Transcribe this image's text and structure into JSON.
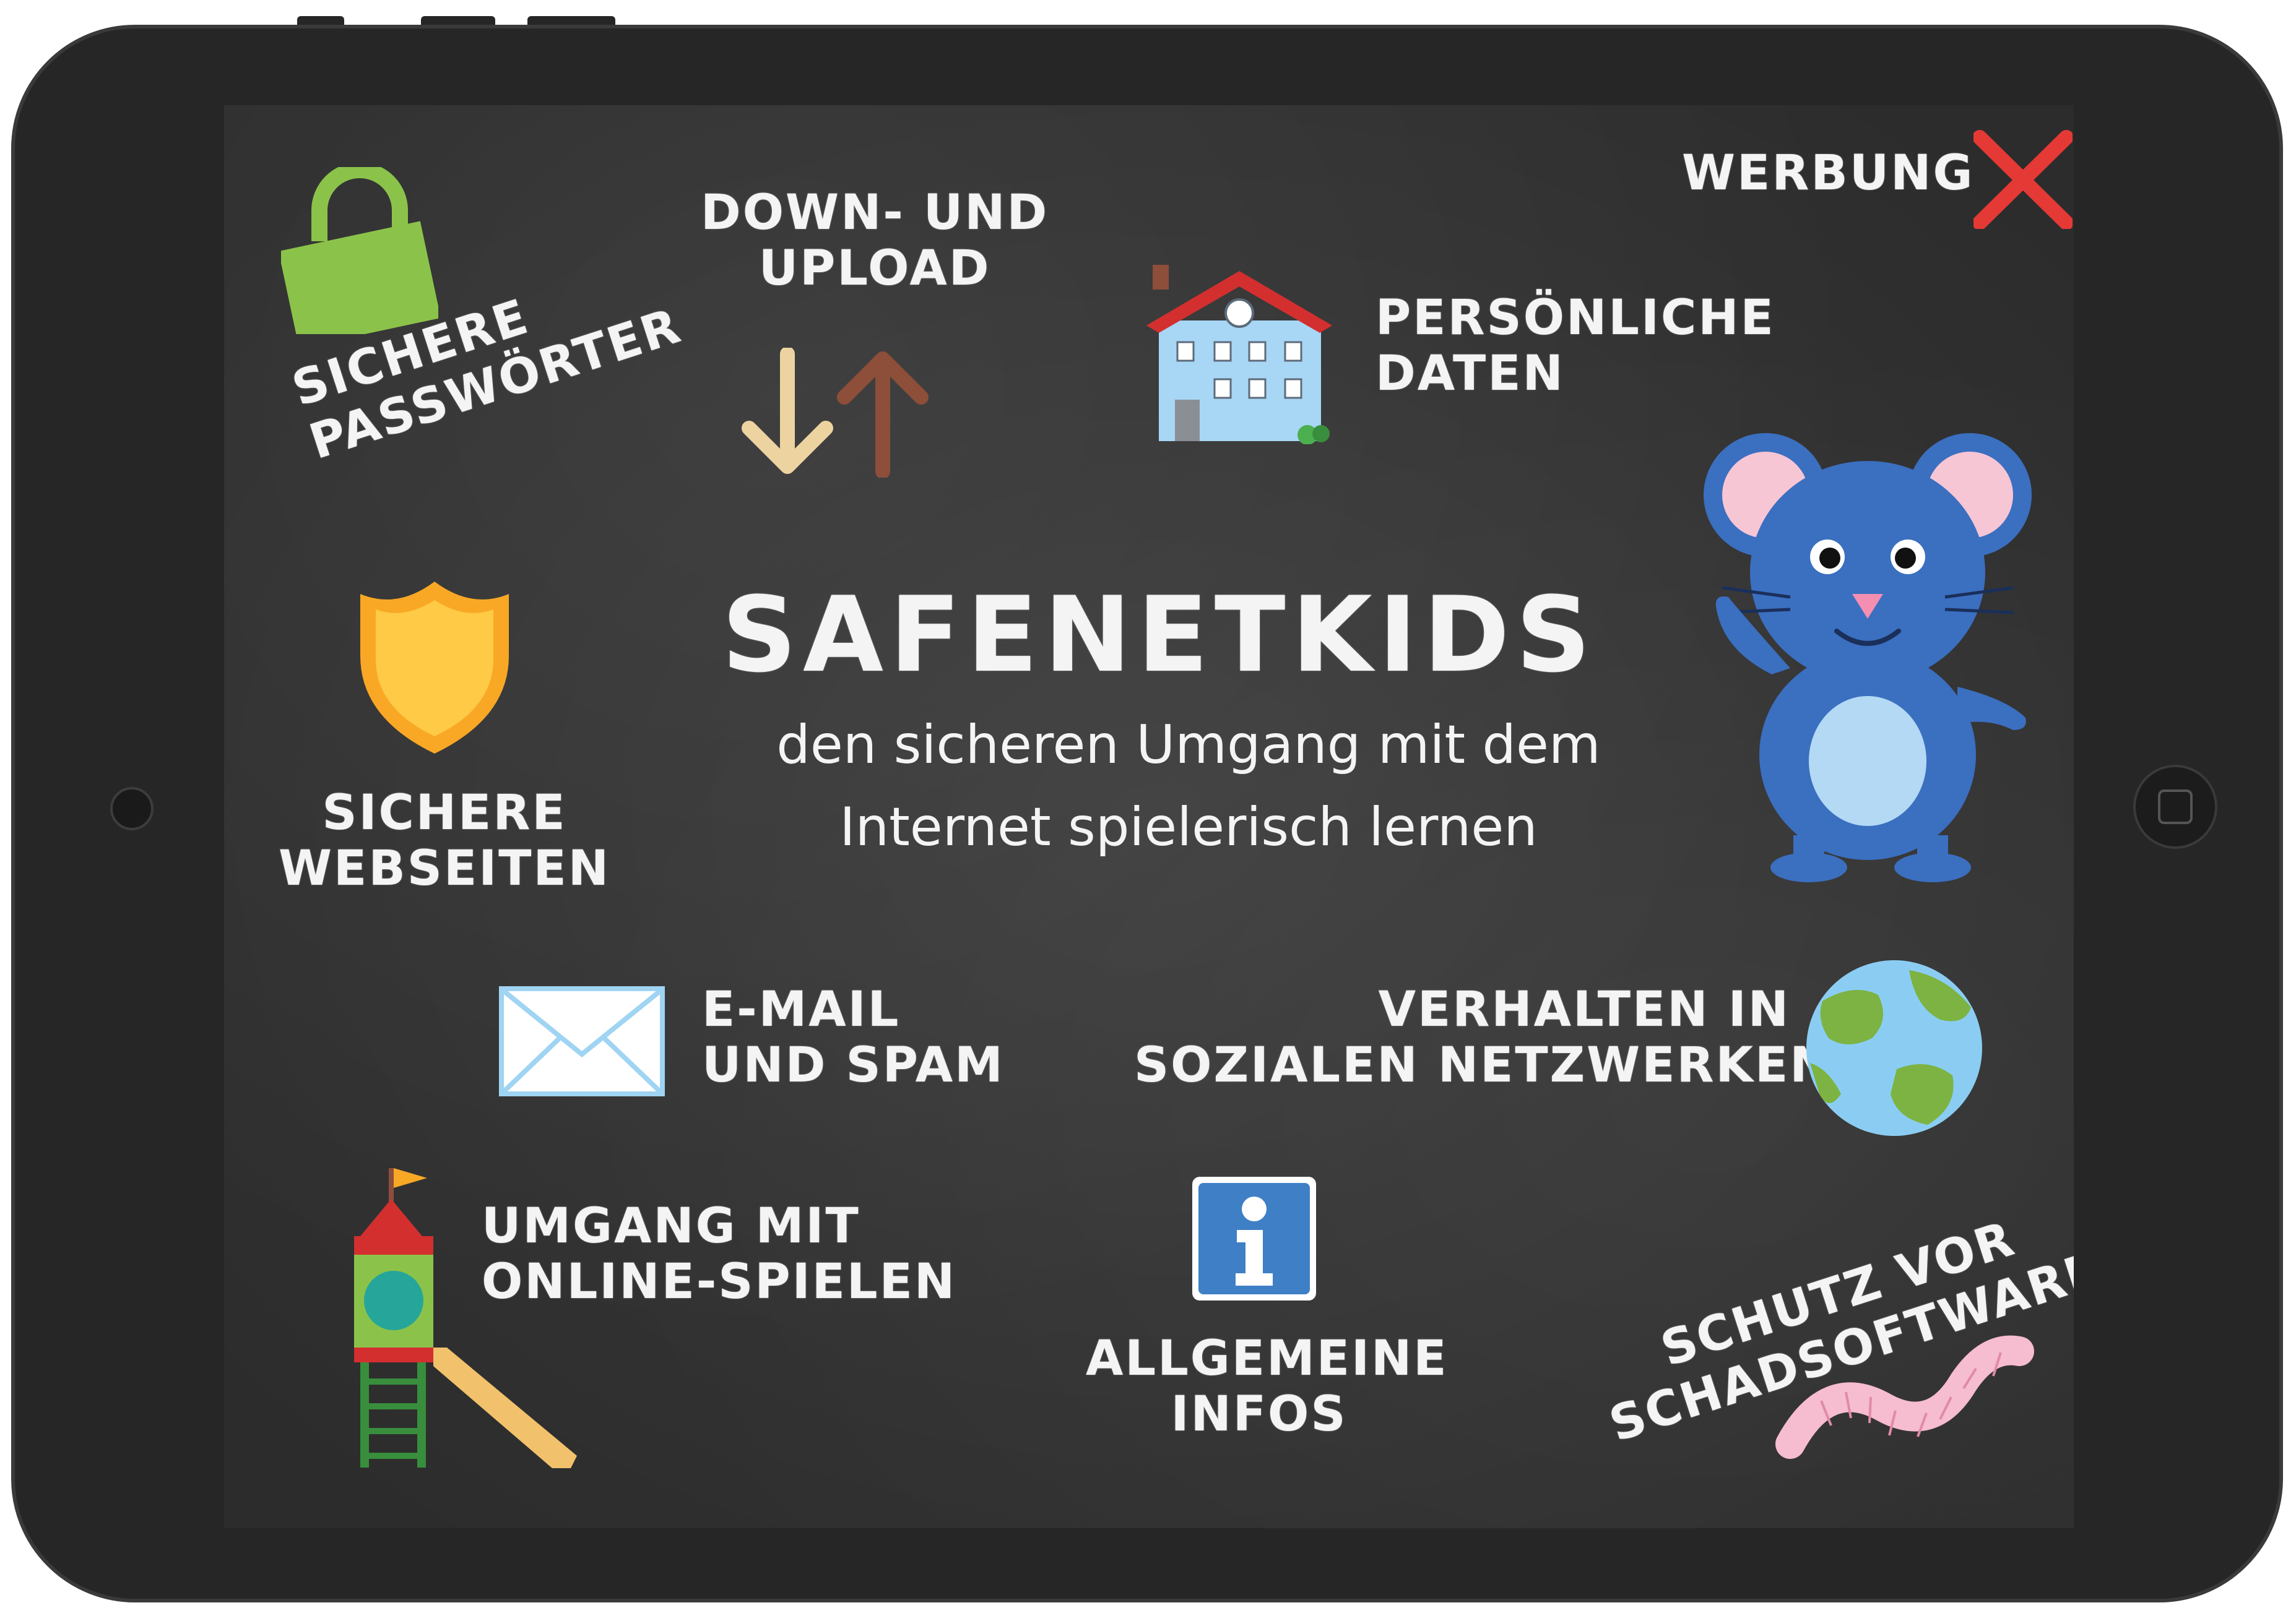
{
  "screen": {
    "title": "SAFENETKIDS",
    "subtitle_line1": "den sicheren Umgang mit dem",
    "subtitle_line2": "Internet spielerisch lernen"
  },
  "tiles": {
    "passwords": {
      "line1": "SICHERE",
      "line2": "PASSWÖRTER",
      "icon": "lock-icon"
    },
    "download": {
      "line1": "DOWN- UND",
      "line2": "UPLOAD",
      "icon": "arrows-icon"
    },
    "personal": {
      "line1": "PERSÖNLICHE",
      "line2": "DATEN",
      "icon": "house-icon"
    },
    "ads": {
      "label": "WERBUNG",
      "icon": "close-x-icon"
    },
    "websites": {
      "line1": "SICHERE",
      "line2": "WEBSEITEN",
      "icon": "shield-icon"
    },
    "email": {
      "line1": "E-MAIL",
      "line2": "UND SPAM",
      "icon": "envelope-icon"
    },
    "social": {
      "line1": "VERHALTEN IN",
      "line2": "SOZIALEN NETZWERKEN",
      "icon": "globe-icon"
    },
    "games": {
      "line1": "UMGANG MIT",
      "line2": "ONLINE-SPIELEN",
      "icon": "playground-icon"
    },
    "info": {
      "line1": "ALLGEMEINE",
      "line2": "INFOS",
      "icon": "info-icon"
    },
    "malware": {
      "line1": "SCHUTZ VOR",
      "line2": "SCHADSOFTWARE",
      "icon": "worm-icon"
    }
  },
  "mascot": {
    "icon": "mouse-mascot-icon"
  },
  "colors": {
    "chalkboard": "#3b3b3b",
    "lock": "#8bc34a",
    "shield": "#f9a825",
    "close": "#e53935",
    "mouse": "#3b6fc0",
    "info": "#3f7fc6"
  }
}
